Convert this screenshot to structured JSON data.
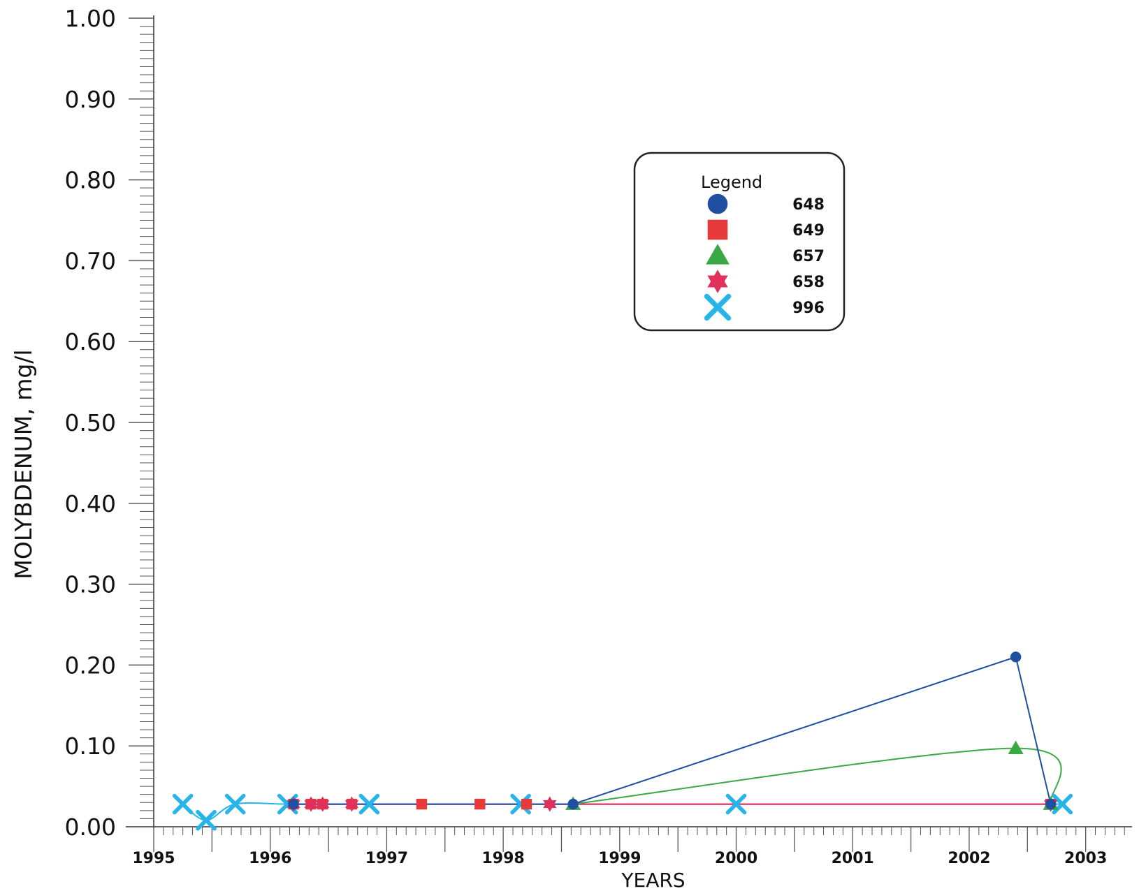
{
  "chart_data": {
    "type": "line",
    "xlabel": "YEARS",
    "ylabel": "MOLYBDENUM, mg/l",
    "xlim": [
      1995.5,
      2003.85
    ],
    "ylim": [
      0,
      1.0
    ],
    "x_ticks": [
      "1995",
      "1996",
      "1997",
      "1998",
      "1999",
      "2000",
      "2001",
      "2002",
      "2003"
    ],
    "y_ticks": [
      "0.00",
      "0.10",
      "0.20",
      "0.30",
      "0.40",
      "0.50",
      "0.60",
      "0.70",
      "0.80",
      "0.90",
      "1.00"
    ],
    "grid": false,
    "legend": {
      "title": "Legend",
      "placement": "upper-right-center",
      "entries": [
        "648",
        "649",
        "657",
        "658",
        "996"
      ]
    },
    "series": [
      {
        "name": "648",
        "marker": "circle",
        "color": "#1f4fa0",
        "x": [
          1996.7,
          1999.1,
          2002.9,
          2003.2
        ],
        "y": [
          0.028,
          0.028,
          0.21,
          0.028
        ]
      },
      {
        "name": "649",
        "marker": "square",
        "color": "#e8393a",
        "x": [
          1996.7,
          1996.85,
          1996.95,
          1997.2,
          1997.8,
          1998.3,
          1998.7,
          2003.2
        ],
        "y": [
          0.028,
          0.028,
          0.028,
          0.028,
          0.028,
          0.028,
          0.028,
          0.028
        ]
      },
      {
        "name": "657",
        "marker": "triangle",
        "color": "#3aa845",
        "x": [
          1999.1,
          2002.9,
          2003.2
        ],
        "y": [
          0.028,
          0.097,
          0.028
        ]
      },
      {
        "name": "658",
        "marker": "star",
        "color": "#e0305c",
        "x": [
          1996.7,
          1996.85,
          1996.95,
          1997.2,
          1998.9,
          2003.2
        ],
        "y": [
          0.028,
          0.028,
          0.028,
          0.028,
          0.028,
          0.028
        ]
      },
      {
        "name": "996",
        "marker": "x",
        "color": "#27b4e8",
        "x": [
          1995.75,
          1995.95,
          1996.2,
          1996.65,
          1997.35,
          1998.65,
          2000.5,
          2003.3
        ],
        "y": [
          0.028,
          0.008,
          0.028,
          0.028,
          0.028,
          0.028,
          0.028,
          0.028
        ]
      }
    ]
  }
}
